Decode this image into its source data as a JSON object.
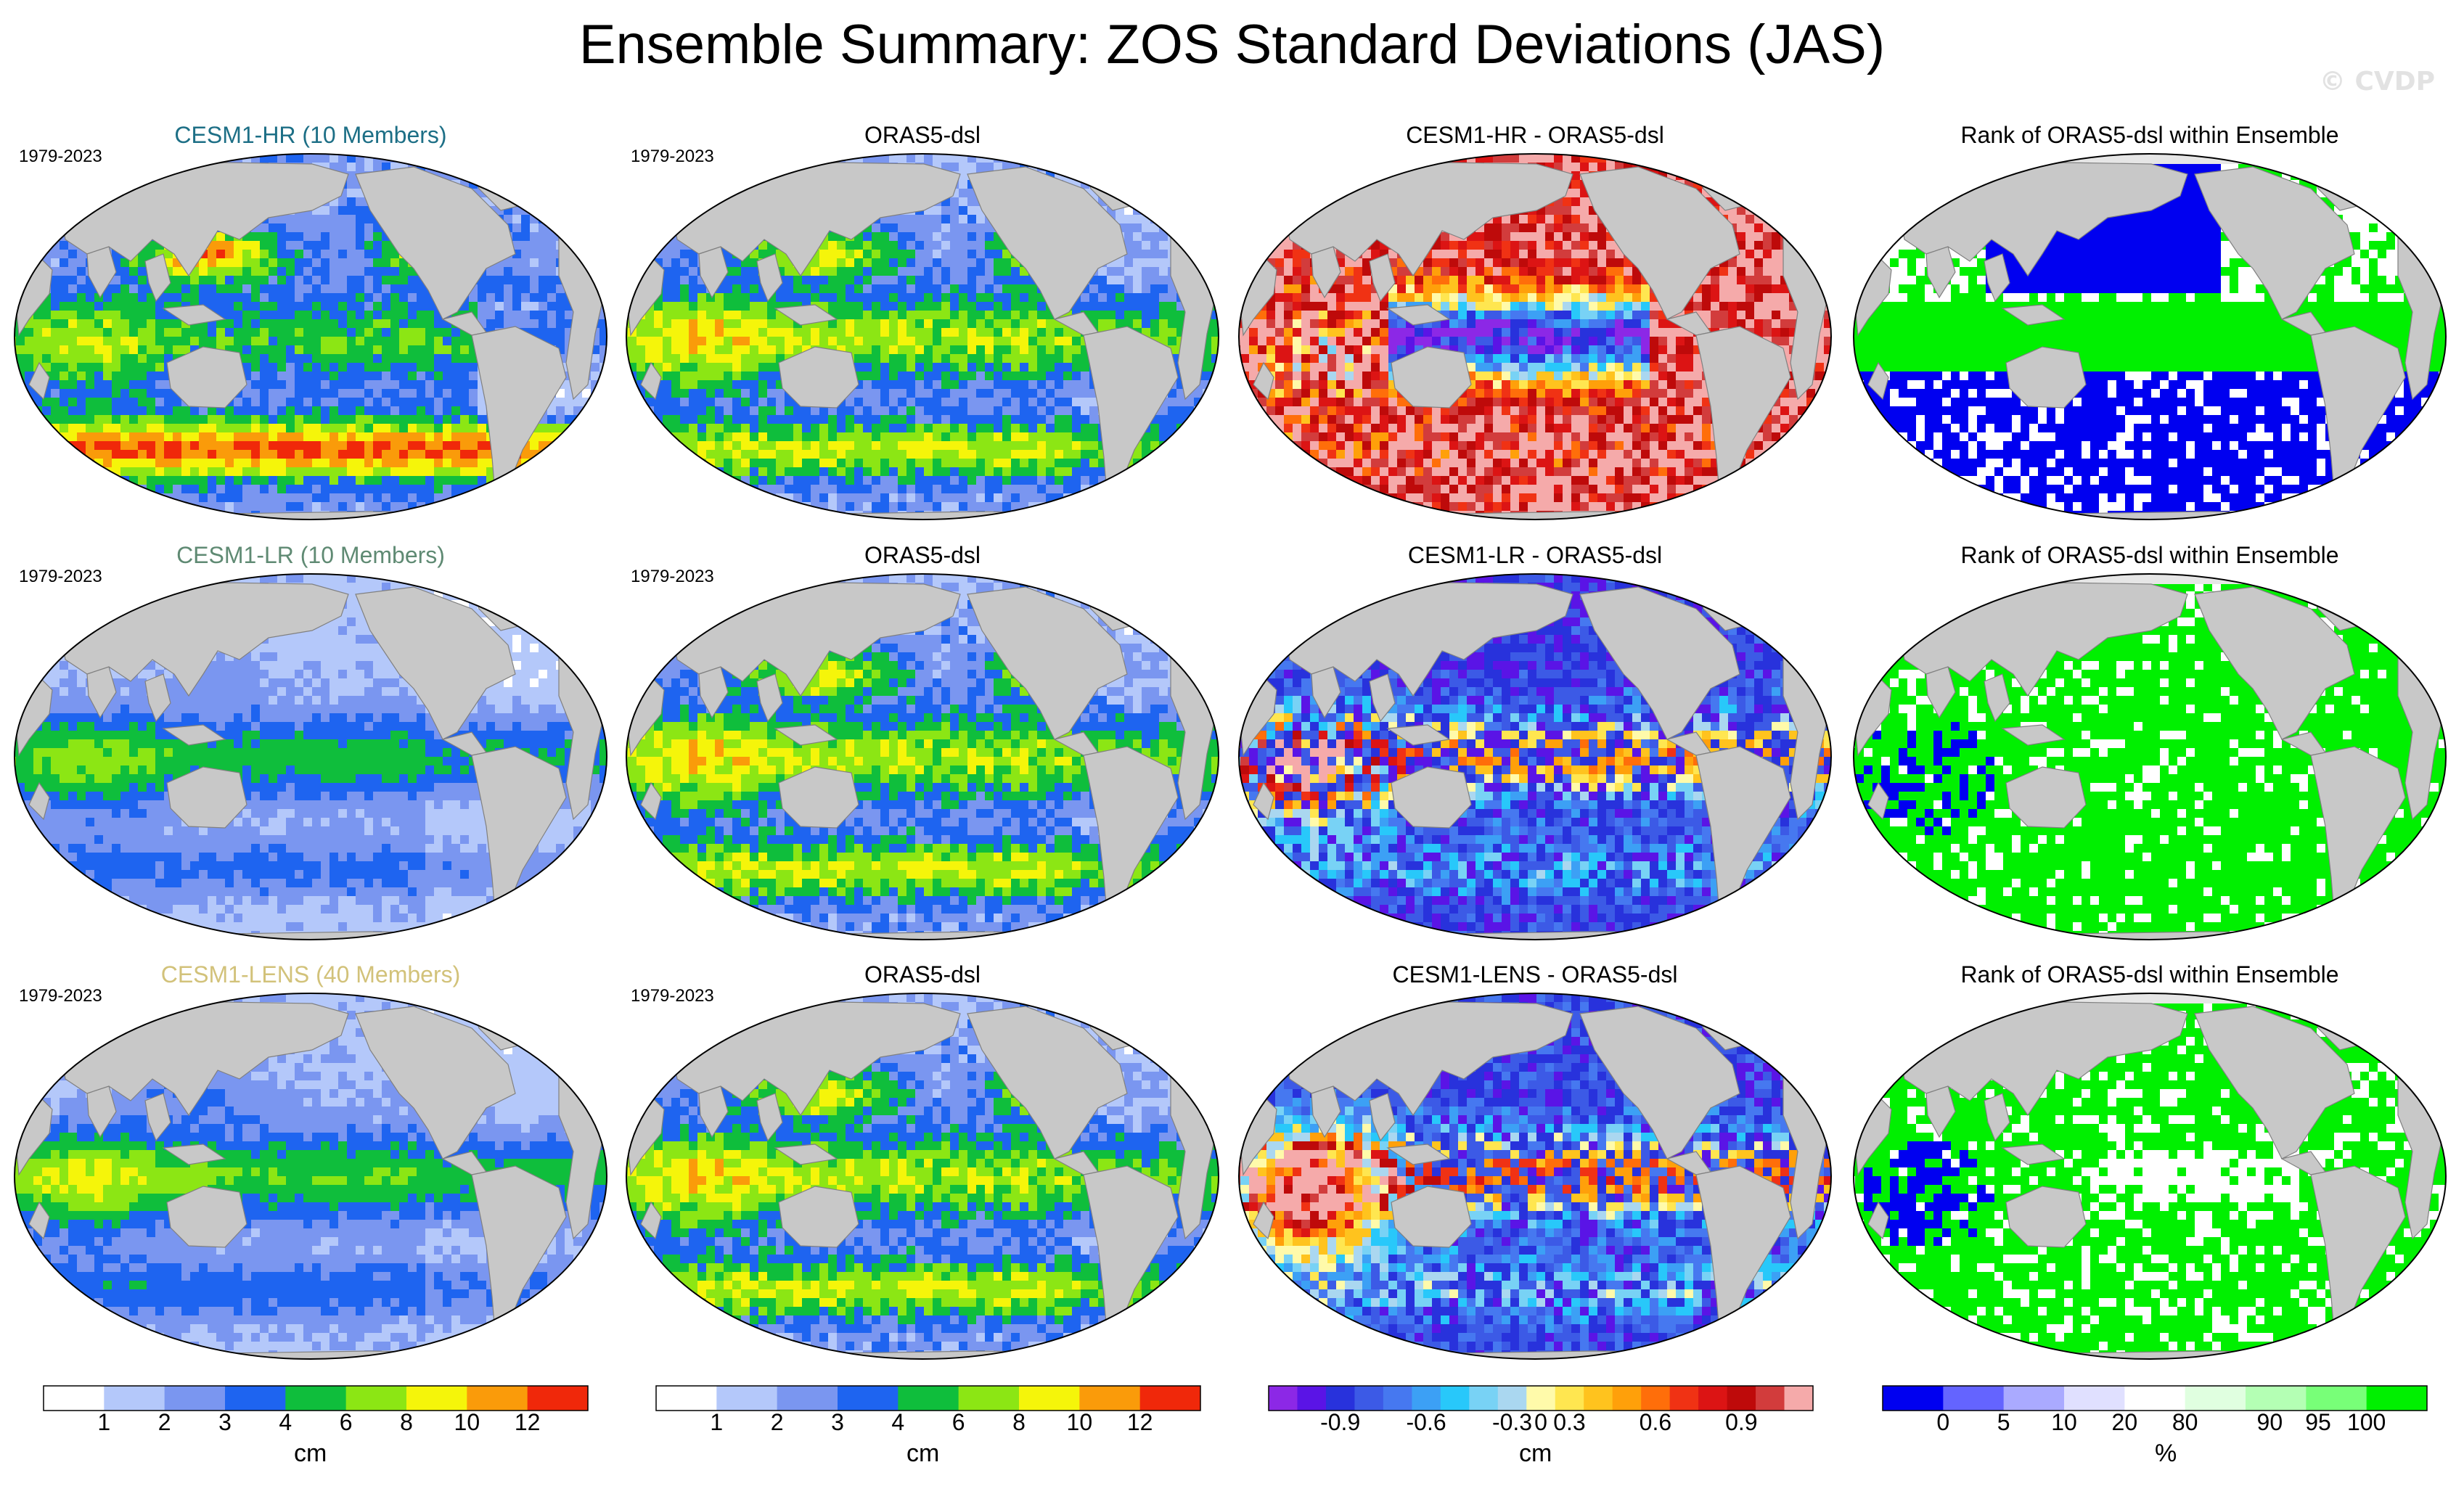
{
  "title": "Ensemble Summary: ZOS Standard Deviations (JAS)",
  "watermark": "© CVDP",
  "colors": {
    "land": "#c8c8c8",
    "ice": "#e6e6e6",
    "coast": "#808080"
  },
  "rows": [
    {
      "panels": [
        {
          "title": "CESM1-HR (10 Members)",
          "title_color": "#1d6f86",
          "years": "1979-2023",
          "scale": "sd",
          "pattern": "hr"
        },
        {
          "title": "ORAS5-dsl",
          "title_color": "#000000",
          "years": "1979-2023",
          "scale": "sd",
          "pattern": "obs"
        },
        {
          "title": "CESM1-HR - ORAS5-dsl",
          "title_color": "#000000",
          "years": "",
          "scale": "diff",
          "pattern": "diff_hr"
        },
        {
          "title": "Rank of ORAS5-dsl within Ensemble",
          "title_color": "#000000",
          "years": "",
          "scale": "rank",
          "pattern": "rank_hr"
        }
      ]
    },
    {
      "panels": [
        {
          "title": "CESM1-LR (10 Members)",
          "title_color": "#5f8a73",
          "years": "1979-2023",
          "scale": "sd",
          "pattern": "lr"
        },
        {
          "title": "ORAS5-dsl",
          "title_color": "#000000",
          "years": "1979-2023",
          "scale": "sd",
          "pattern": "obs"
        },
        {
          "title": "CESM1-LR - ORAS5-dsl",
          "title_color": "#000000",
          "years": "",
          "scale": "diff",
          "pattern": "diff_lr"
        },
        {
          "title": "Rank of ORAS5-dsl within Ensemble",
          "title_color": "#000000",
          "years": "",
          "scale": "rank",
          "pattern": "rank_lr"
        }
      ]
    },
    {
      "panels": [
        {
          "title": "CESM1-LENS (40 Members)",
          "title_color": "#d2c27a",
          "years": "1979-2023",
          "scale": "sd",
          "pattern": "lens"
        },
        {
          "title": "ORAS5-dsl",
          "title_color": "#000000",
          "years": "1979-2023",
          "scale": "sd",
          "pattern": "obs"
        },
        {
          "title": "CESM1-LENS - ORAS5-dsl",
          "title_color": "#000000",
          "years": "",
          "scale": "diff",
          "pattern": "diff_lens"
        },
        {
          "title": "Rank of ORAS5-dsl within Ensemble",
          "title_color": "#000000",
          "years": "",
          "scale": "rank",
          "pattern": "rank_lens"
        }
      ]
    }
  ],
  "colorbars": [
    {
      "scale": "sd",
      "unit": "cm",
      "colors": [
        "#ffffff",
        "#b4c8fa",
        "#7a96f0",
        "#1e64f0",
        "#0fbe3c",
        "#8ce614",
        "#f5f50a",
        "#fa9b0a",
        "#f0280a"
      ],
      "labels": [
        "1",
        "2",
        "3",
        "4",
        "6",
        "8",
        "10",
        "12"
      ]
    },
    {
      "scale": "sd",
      "unit": "cm",
      "colors": [
        "#ffffff",
        "#b4c8fa",
        "#7a96f0",
        "#1e64f0",
        "#0fbe3c",
        "#8ce614",
        "#f5f50a",
        "#fa9b0a",
        "#f0280a"
      ],
      "labels": [
        "1",
        "2",
        "3",
        "4",
        "6",
        "8",
        "10",
        "12"
      ]
    },
    {
      "scale": "diff",
      "unit": "cm",
      "colors": [
        "#8c28e6",
        "#5a14e6",
        "#2832dc",
        "#3c5ae6",
        "#4678f0",
        "#3ca0f5",
        "#28c8fa",
        "#78d2f5",
        "#aad7f0",
        "#fffaaa",
        "#ffe650",
        "#ffc31e",
        "#ffa00a",
        "#ff6e0a",
        "#f03214",
        "#dc1414",
        "#be0a0a",
        "#d23c3c",
        "#f5aaaa"
      ],
      "labels": [
        "-0.9",
        "-0.6",
        "-0.3",
        "0",
        "0.3",
        "0.6",
        "0.9"
      ]
    },
    {
      "scale": "rank",
      "unit": "%",
      "colors": [
        "#0000f0",
        "#6464ff",
        "#aaaaff",
        "#e0e0ff",
        "#ffffff",
        "#e0ffe0",
        "#b4ffb4",
        "#78ff78",
        "#00f000"
      ],
      "labels": [
        "0",
        "5",
        "10",
        "20",
        "80",
        "90",
        "95",
        "100"
      ]
    }
  ]
}
